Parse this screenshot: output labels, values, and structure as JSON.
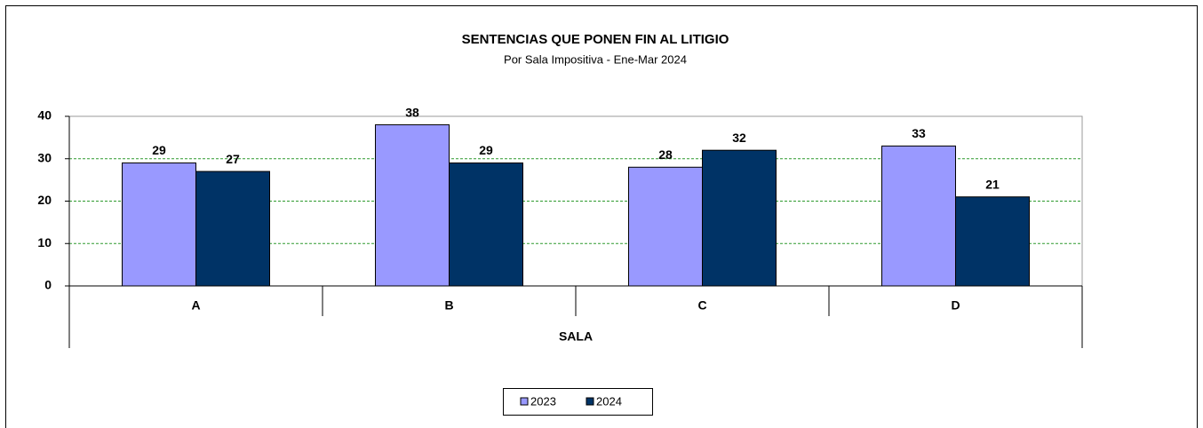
{
  "chart_data": {
    "type": "bar",
    "title": "SENTENCIAS  QUE PONEN FIN AL LITIGIO",
    "subtitle": "Por Sala Impositiva - Ene-Mar 2024",
    "x_label": "SALA",
    "categories": [
      "A",
      "B",
      "C",
      "D"
    ],
    "series": [
      {
        "name": "2023",
        "color": "#9999ff",
        "label_color": "#2d4a2d",
        "values": [
          29,
          38,
          28,
          33
        ]
      },
      {
        "name": "2024",
        "color": "#003366",
        "label_color": "#000000",
        "values": [
          27,
          29,
          32,
          21
        ]
      }
    ],
    "ylim": [
      0,
      40
    ],
    "yticks": [
      0,
      10,
      20,
      30,
      40
    ],
    "grid": true,
    "legend": "bottom"
  }
}
